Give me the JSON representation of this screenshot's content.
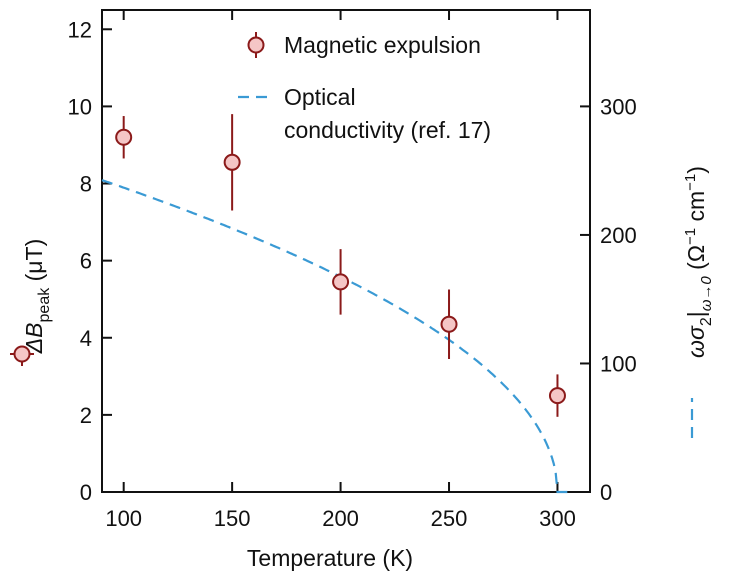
{
  "chart_data": {
    "type": "scatter",
    "xlabel": "Temperature (K)",
    "xlim": [
      90,
      315
    ],
    "x_ticks": [
      100,
      150,
      200,
      250,
      300
    ],
    "y_left": {
      "label_prefix": "ΔB",
      "label_sub": "peak",
      "label_unit": " (μT)",
      "lim": [
        0,
        12.5
      ],
      "ticks": [
        0,
        2,
        4,
        6,
        8,
        10,
        12
      ]
    },
    "y_right": {
      "label_omega": "ω",
      "label_sigma": "σ",
      "label_sub1": "2",
      "label_sub2": "ω→0",
      "label_unit_open": " (Ω",
      "label_sup1": "−1",
      "label_unit_mid": " cm",
      "label_sup2": "−1",
      "label_unit_close": ")",
      "lim": [
        0,
        375
      ],
      "ticks": [
        0,
        100,
        200,
        300
      ]
    },
    "series": [
      {
        "name": "Magnetic expulsion",
        "kind": "points",
        "axis": "left",
        "marker_fill": "#f5c6c6",
        "color": "#8b1a1a",
        "points": [
          {
            "x": 100,
            "y": 9.2,
            "err": 0.55
          },
          {
            "x": 150,
            "y": 8.55,
            "err": 1.25
          },
          {
            "x": 200,
            "y": 5.45,
            "err": 0.85
          },
          {
            "x": 250,
            "y": 4.35,
            "err": 0.9
          },
          {
            "x": 300,
            "y": 2.5,
            "err": 0.55
          }
        ]
      },
      {
        "name_line1": "Optical",
        "name_line2": "conductivity (ref. 17)",
        "kind": "dashed-line",
        "axis": "right",
        "color": "#3a9ad4",
        "curve": {
          "A": 290,
          "Tc": 300,
          "exponent": 0.5
        }
      }
    ]
  }
}
